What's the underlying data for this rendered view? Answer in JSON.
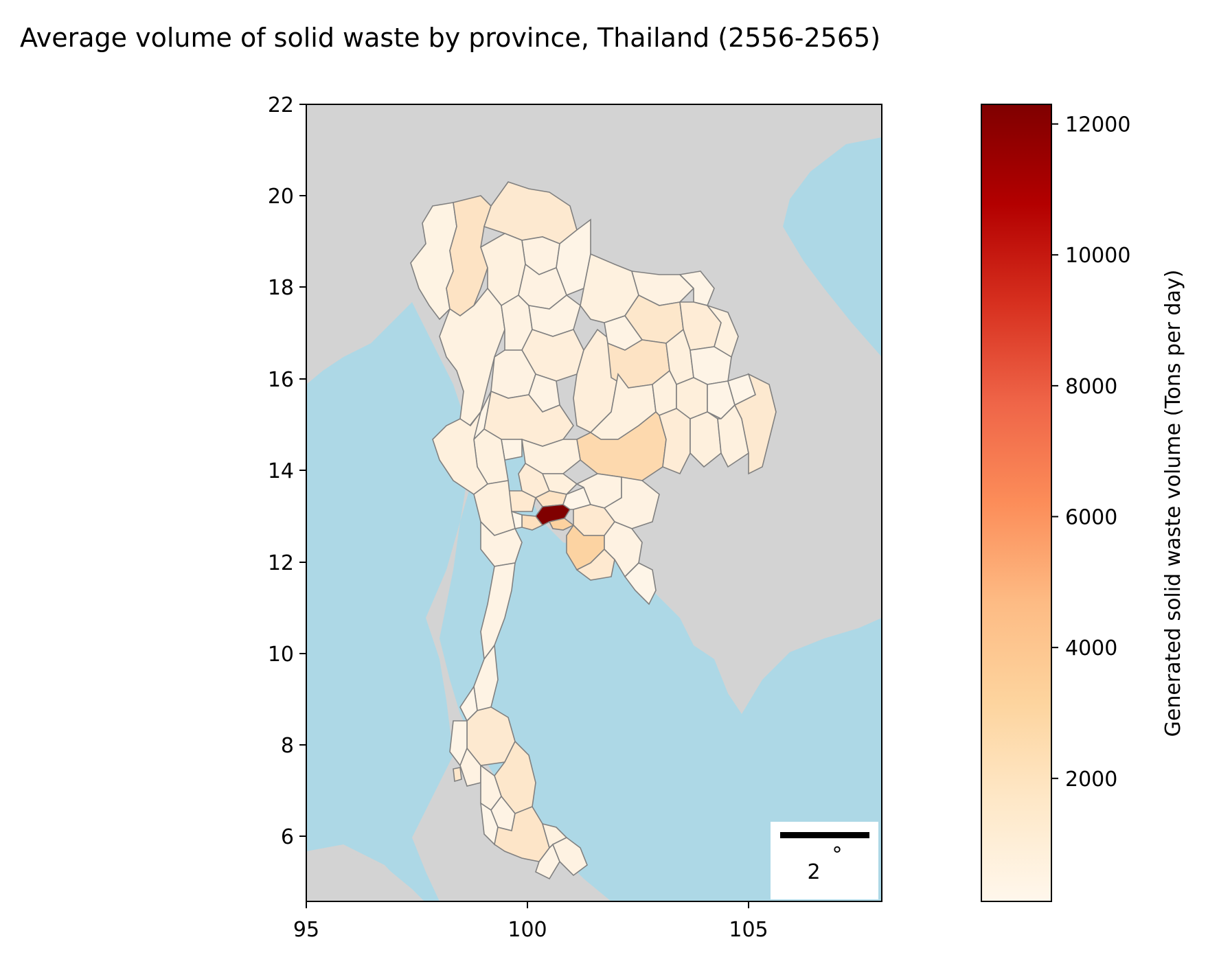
{
  "title": "Average volume of solid waste by province, Thailand (2556-2565)",
  "colors": {
    "sea": "#add8e6",
    "land": "#d3d3d3",
    "border": "#808080",
    "scale_bar": "#000000"
  },
  "map": {
    "x_ticks": [
      "95",
      "100",
      "105"
    ],
    "y_ticks": [
      "6",
      "8",
      "10",
      "12",
      "14",
      "16",
      "18",
      "20",
      "22"
    ],
    "x_range": [
      95,
      108
    ],
    "y_range": [
      4.5,
      22
    ],
    "scale_bar": {
      "label": "2",
      "degree_symbol": "°"
    }
  },
  "colorbar": {
    "label": "Generated solid waste volume (Tons per day)",
    "ticks": [
      "2000",
      "4000",
      "6000",
      "8000",
      "10000",
      "12000"
    ],
    "range": [
      120,
      12300
    ],
    "colormap": [
      "#fff7ec",
      "#fee8c8",
      "#fdd49e",
      "#fdbb84",
      "#fc8d59",
      "#ef6548",
      "#d7301f",
      "#b30000",
      "#7f0000"
    ]
  }
}
